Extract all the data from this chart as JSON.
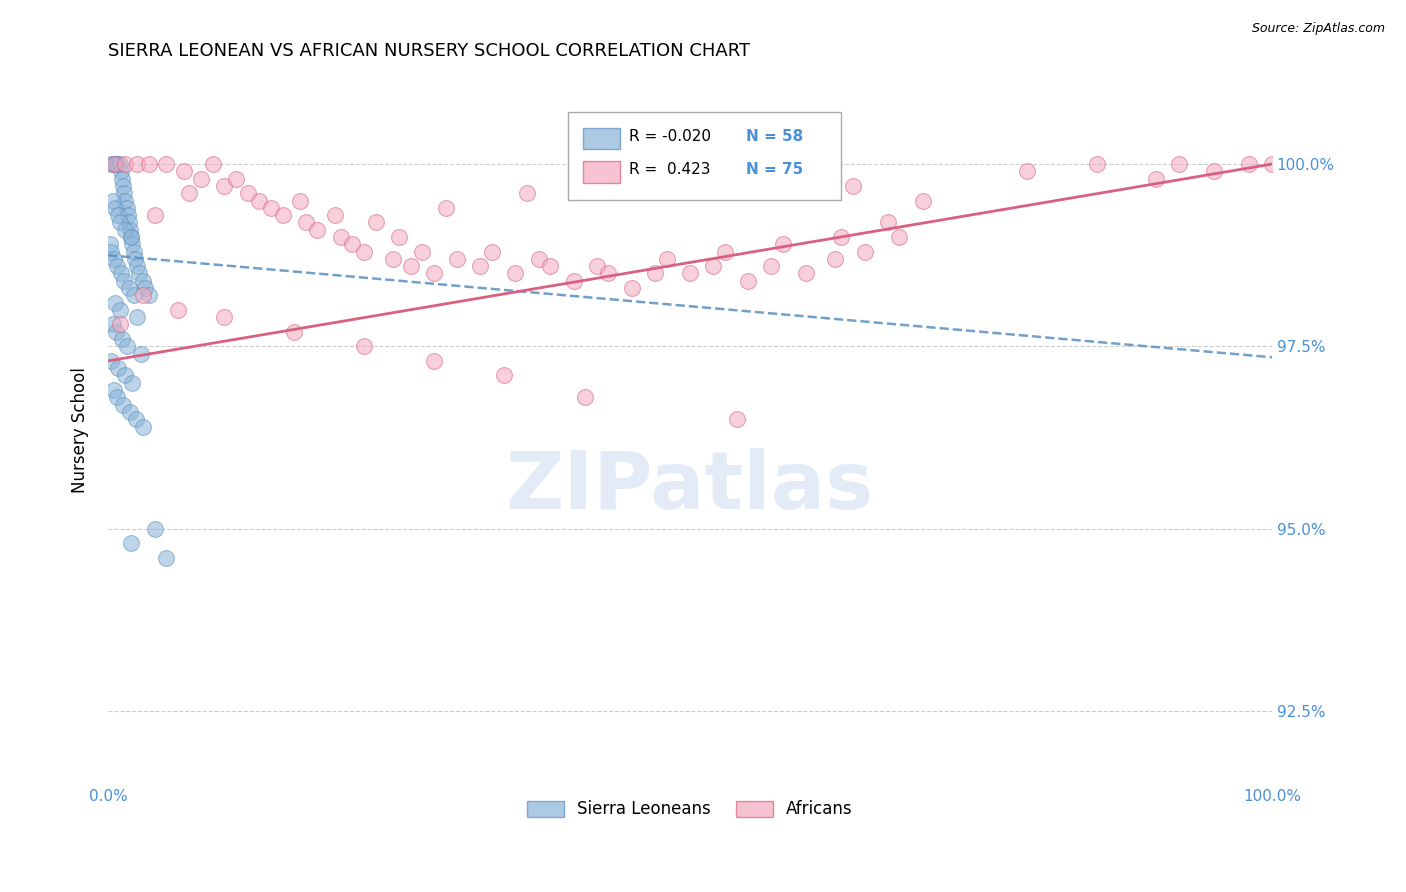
{
  "title": "SIERRA LEONEAN VS AFRICAN NURSERY SCHOOL CORRELATION CHART",
  "source": "Source: ZipAtlas.com",
  "ylabel": "Nursery School",
  "xlim": [
    0.0,
    100.0
  ],
  "ylim": [
    91.5,
    101.2
  ],
  "yticks": [
    92.5,
    95.0,
    97.5,
    100.0
  ],
  "ytick_labels": [
    "92.5%",
    "95.0%",
    "97.5%",
    "100.0%"
  ],
  "xticks": [
    0.0,
    25.0,
    50.0,
    75.0,
    100.0
  ],
  "xtick_labels": [
    "0.0%",
    "",
    "",
    "",
    "100.0%"
  ],
  "legend_r_blue": "-0.020",
  "legend_n_blue": "58",
  "legend_r_pink": "0.423",
  "legend_n_pink": "75",
  "blue_color": "#8ab4d8",
  "pink_color": "#f2aabe",
  "blue_edge_color": "#5a8fc0",
  "pink_edge_color": "#d96080",
  "blue_line_color": "#5a8fc0",
  "pink_line_color": "#d96080",
  "watermark": "ZIPatlas",
  "blue_scatter_x": [
    0.3,
    0.5,
    0.7,
    0.8,
    1.0,
    1.1,
    1.2,
    1.3,
    1.4,
    1.5,
    1.6,
    1.7,
    1.8,
    1.9,
    2.0,
    2.1,
    2.2,
    2.3,
    2.5,
    2.7,
    3.0,
    3.2,
    3.5,
    0.4,
    0.6,
    0.9,
    1.0,
    1.5,
    2.0,
    0.2,
    0.3,
    0.5,
    0.8,
    1.1,
    1.4,
    1.8,
    2.2,
    0.6,
    1.0,
    2.5,
    0.4,
    0.7,
    1.2,
    1.6,
    2.8,
    0.3,
    0.9,
    1.5,
    2.1,
    0.5,
    0.8,
    1.3,
    1.9,
    2.4,
    3.0,
    4.0,
    2.0,
    5.0
  ],
  "blue_scatter_y": [
    100.0,
    100.0,
    100.0,
    100.0,
    100.0,
    99.9,
    99.8,
    99.7,
    99.6,
    99.5,
    99.4,
    99.3,
    99.2,
    99.1,
    99.0,
    98.9,
    98.8,
    98.7,
    98.6,
    98.5,
    98.4,
    98.3,
    98.2,
    99.5,
    99.4,
    99.3,
    99.2,
    99.1,
    99.0,
    98.9,
    98.8,
    98.7,
    98.6,
    98.5,
    98.4,
    98.3,
    98.2,
    98.1,
    98.0,
    97.9,
    97.8,
    97.7,
    97.6,
    97.5,
    97.4,
    97.3,
    97.2,
    97.1,
    97.0,
    96.9,
    96.8,
    96.7,
    96.6,
    96.5,
    96.4,
    95.0,
    94.8,
    94.6
  ],
  "pink_scatter_x": [
    0.5,
    1.5,
    2.5,
    3.5,
    5.0,
    6.5,
    8.0,
    9.0,
    10.0,
    11.0,
    12.0,
    13.0,
    14.0,
    15.0,
    16.5,
    17.0,
    18.0,
    19.5,
    20.0,
    21.0,
    22.0,
    23.0,
    24.5,
    25.0,
    26.0,
    27.0,
    28.0,
    30.0,
    32.0,
    33.0,
    35.0,
    37.0,
    38.0,
    40.0,
    42.0,
    43.0,
    45.0,
    47.0,
    48.0,
    50.0,
    52.0,
    53.0,
    55.0,
    57.0,
    58.0,
    60.0,
    62.5,
    63.0,
    65.0,
    67.0,
    68.0,
    70.0,
    4.0,
    7.0,
    29.0,
    36.0,
    44.0,
    64.0,
    79.0,
    85.0,
    90.0,
    92.0,
    95.0,
    98.0,
    100.0,
    1.0,
    3.0,
    6.0,
    10.0,
    16.0,
    22.0,
    28.0,
    34.0,
    41.0,
    54.0
  ],
  "pink_scatter_y": [
    100.0,
    100.0,
    100.0,
    100.0,
    100.0,
    99.9,
    99.8,
    100.0,
    99.7,
    99.8,
    99.6,
    99.5,
    99.4,
    99.3,
    99.5,
    99.2,
    99.1,
    99.3,
    99.0,
    98.9,
    98.8,
    99.2,
    98.7,
    99.0,
    98.6,
    98.8,
    98.5,
    98.7,
    98.6,
    98.8,
    98.5,
    98.7,
    98.6,
    98.4,
    98.6,
    98.5,
    98.3,
    98.5,
    98.7,
    98.5,
    98.6,
    98.8,
    98.4,
    98.6,
    98.9,
    98.5,
    98.7,
    99.0,
    98.8,
    99.2,
    99.0,
    99.5,
    99.3,
    99.6,
    99.4,
    99.6,
    99.8,
    99.7,
    99.9,
    100.0,
    99.8,
    100.0,
    99.9,
    100.0,
    100.0,
    97.8,
    98.2,
    98.0,
    97.9,
    97.7,
    97.5,
    97.3,
    97.1,
    96.8,
    96.5
  ]
}
